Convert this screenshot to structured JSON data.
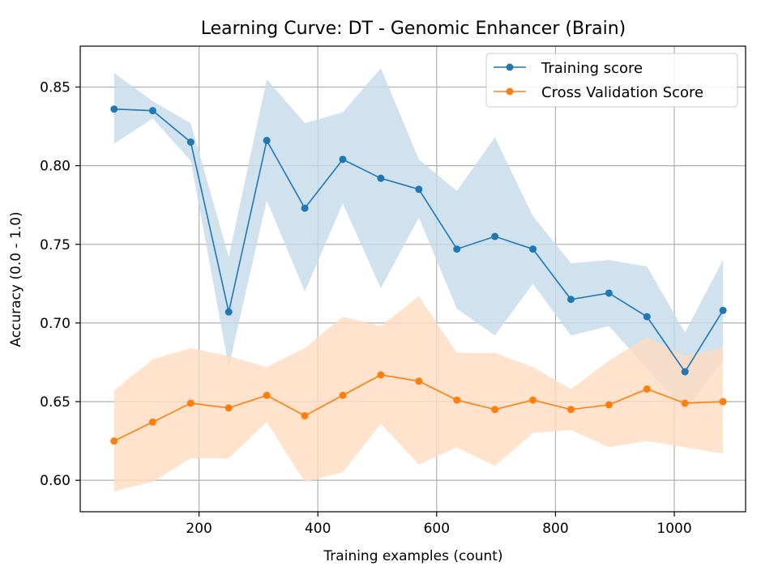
{
  "chart_data": {
    "type": "line",
    "title": "Learning Curve: DT - Genomic Enhancer (Brain)",
    "xlabel": "Training examples (count)",
    "ylabel": "Accuracy (0.0 - 1.0)",
    "xlim": [
      0,
      1120
    ],
    "ylim": [
      0.58,
      0.876
    ],
    "xticks": [
      200,
      400,
      600,
      800,
      1000
    ],
    "yticks": [
      0.6,
      0.65,
      0.7,
      0.75,
      0.8,
      0.85
    ],
    "xtick_labels": [
      "200",
      "400",
      "600",
      "800",
      "1000"
    ],
    "ytick_labels": [
      "0.60",
      "0.65",
      "0.70",
      "0.75",
      "0.80",
      "0.85"
    ],
    "grid": true,
    "legend_position": "top-right",
    "x": [
      57,
      122,
      186,
      250,
      314,
      378,
      442,
      506,
      570,
      634,
      698,
      762,
      826,
      890,
      954,
      1018,
      1082
    ],
    "series": [
      {
        "name": "Training score",
        "color": "#1f77b4",
        "band_color": "#c6dbeb",
        "values": [
          0.836,
          0.835,
          0.815,
          0.707,
          0.816,
          0.773,
          0.804,
          0.792,
          0.785,
          0.747,
          0.755,
          0.747,
          0.715,
          0.719,
          0.704,
          0.669,
          0.708
        ],
        "band_upper": [
          0.859,
          0.841,
          0.827,
          0.742,
          0.855,
          0.827,
          0.834,
          0.862,
          0.804,
          0.784,
          0.818,
          0.768,
          0.738,
          0.74,
          0.736,
          0.694,
          0.74
        ],
        "band_lower": [
          0.814,
          0.83,
          0.803,
          0.672,
          0.778,
          0.72,
          0.776,
          0.722,
          0.767,
          0.709,
          0.692,
          0.725,
          0.692,
          0.698,
          0.671,
          0.644,
          0.676
        ]
      },
      {
        "name": "Cross Validation Score",
        "color": "#ff7f0e",
        "band_color": "#ffdcbf",
        "values": [
          0.625,
          0.637,
          0.649,
          0.646,
          0.654,
          0.641,
          0.654,
          0.667,
          0.663,
          0.651,
          0.645,
          0.651,
          0.645,
          0.648,
          0.658,
          0.649,
          0.65
        ],
        "band_upper": [
          0.657,
          0.677,
          0.684,
          0.679,
          0.672,
          0.684,
          0.704,
          0.698,
          0.717,
          0.681,
          0.681,
          0.672,
          0.658,
          0.676,
          0.691,
          0.679,
          0.684
        ],
        "band_lower": [
          0.593,
          0.599,
          0.614,
          0.614,
          0.637,
          0.599,
          0.605,
          0.636,
          0.61,
          0.621,
          0.609,
          0.63,
          0.632,
          0.621,
          0.625,
          0.621,
          0.617
        ]
      }
    ]
  }
}
